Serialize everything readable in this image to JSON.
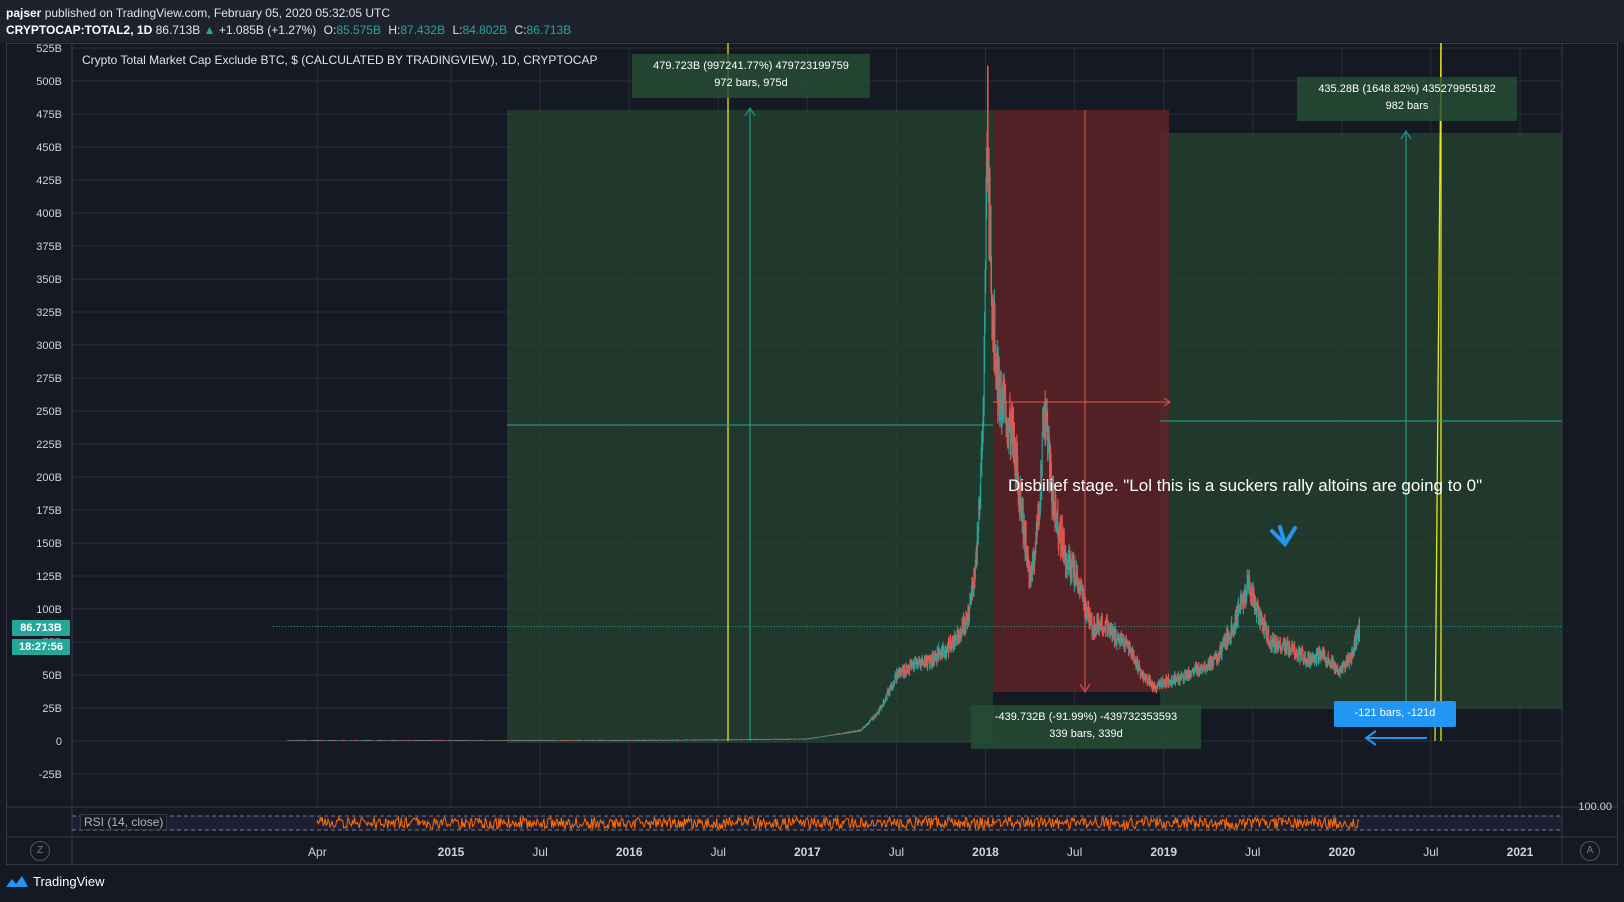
{
  "header": {
    "publisher": "pajser",
    "published_text": "published on TradingView.com, February 05, 2020 05:32:05 UTC",
    "symbol": "CRYPTOCAP:TOTAL2, 1D",
    "last_price": "86.713B",
    "change": "+1.085B (+1.27%)",
    "open_label": "O:",
    "open": "85.575B",
    "high_label": "H:",
    "high": "87.432B",
    "low_label": "L:",
    "low": "84.802B",
    "close_label": "C:",
    "close": "86.713B"
  },
  "chart_title": "Crypto Total Market Cap Exclude BTC, $ (CALCULATED BY TRADINGVIEW), 1D, CRYPTOCAP",
  "price_tags": {
    "price": "86.713B",
    "countdown": "18:27:56"
  },
  "measures": {
    "m1": {
      "line1": "479.723B (997241.77%) 479723199759",
      "line2": "972 bars, 975d"
    },
    "m2": {
      "line1": "435.28B (1648.82%) 435279955182",
      "line2": "982 bars"
    },
    "m3": {
      "line1": "-439.732B (-91.99%) -439732353593",
      "line2": "339 bars, 339d"
    },
    "m4": {
      "line1": "-121 bars, -121d"
    }
  },
  "annotation": "Disbilief stage. \"Lol this is a suckers rally altoins are going to 0\"",
  "rsi": {
    "label": "RSI (14, close)",
    "level": "100.00"
  },
  "footer": {
    "brand": "TradingView"
  },
  "buttons": {
    "zoom": "Z",
    "auto": "A"
  },
  "colors": {
    "background": "#151924",
    "up": "#26a69a",
    "down": "#ef5350",
    "green_zone": "#26442f",
    "red_zone": "#5c2327",
    "yellow_line": "#e5e51a",
    "rsi_line": "#ff6d00"
  },
  "chart_data": {
    "type": "candlestick",
    "title": "Crypto Total Market Cap Exclude BTC, $ (CALCULATED BY TRADINGVIEW), 1D, CRYPTOCAP",
    "y_axis": {
      "ticks": [
        "525B",
        "500B",
        "475B",
        "450B",
        "425B",
        "400B",
        "375B",
        "350B",
        "325B",
        "300B",
        "275B",
        "250B",
        "225B",
        "200B",
        "175B",
        "150B",
        "125B",
        "100B",
        "75B",
        "50B",
        "25B",
        "0",
        "-25B"
      ],
      "values": [
        525,
        500,
        475,
        450,
        425,
        400,
        375,
        350,
        325,
        300,
        275,
        250,
        225,
        200,
        175,
        150,
        125,
        100,
        75,
        50,
        25,
        0,
        -25
      ],
      "unit": "B"
    },
    "x_axis": {
      "ticks": [
        "Apr",
        "2015",
        "Jul",
        "2016",
        "Jul",
        "2017",
        "Jul",
        "2018",
        "Jul",
        "2019",
        "Jul",
        "2020",
        "Jul",
        "2021"
      ],
      "dates": [
        2014.25,
        2015.0,
        2015.5,
        2016.0,
        2016.5,
        2017.0,
        2017.5,
        2018.0,
        2018.5,
        2019.0,
        2019.5,
        2020.0,
        2020.5,
        2021.0
      ]
    },
    "series": [
      {
        "points": [
          [
            2014.0,
            0.3
          ],
          [
            2015.0,
            0.3
          ],
          [
            2016.0,
            0.4
          ],
          [
            2016.5,
            0.9
          ],
          [
            2017.0,
            1.5
          ],
          [
            2017.3,
            8
          ],
          [
            2017.4,
            22
          ],
          [
            2017.5,
            50
          ],
          [
            2017.6,
            58
          ],
          [
            2017.7,
            62
          ],
          [
            2017.8,
            72
          ],
          [
            2017.9,
            92
          ],
          [
            2017.95,
            140
          ],
          [
            2017.99,
            250
          ],
          [
            2018.01,
            470
          ],
          [
            2018.04,
            320
          ],
          [
            2018.08,
            260
          ],
          [
            2018.15,
            230
          ],
          [
            2018.2,
            180
          ],
          [
            2018.25,
            120
          ],
          [
            2018.3,
            170
          ],
          [
            2018.33,
            255
          ],
          [
            2018.38,
            180
          ],
          [
            2018.45,
            140
          ],
          [
            2018.52,
            120
          ],
          [
            2018.6,
            85
          ],
          [
            2018.65,
            90
          ],
          [
            2018.72,
            80
          ],
          [
            2018.8,
            72
          ],
          [
            2018.88,
            50
          ],
          [
            2018.95,
            40
          ],
          [
            2019.0,
            45
          ],
          [
            2019.1,
            48
          ],
          [
            2019.2,
            55
          ],
          [
            2019.3,
            62
          ],
          [
            2019.4,
            90
          ],
          [
            2019.48,
            120
          ],
          [
            2019.52,
            100
          ],
          [
            2019.6,
            75
          ],
          [
            2019.7,
            70
          ],
          [
            2019.8,
            62
          ],
          [
            2019.9,
            65
          ],
          [
            2019.98,
            52
          ],
          [
            2020.05,
            62
          ],
          [
            2020.1,
            87
          ]
        ]
      }
    ],
    "current_price": 86.713
  }
}
